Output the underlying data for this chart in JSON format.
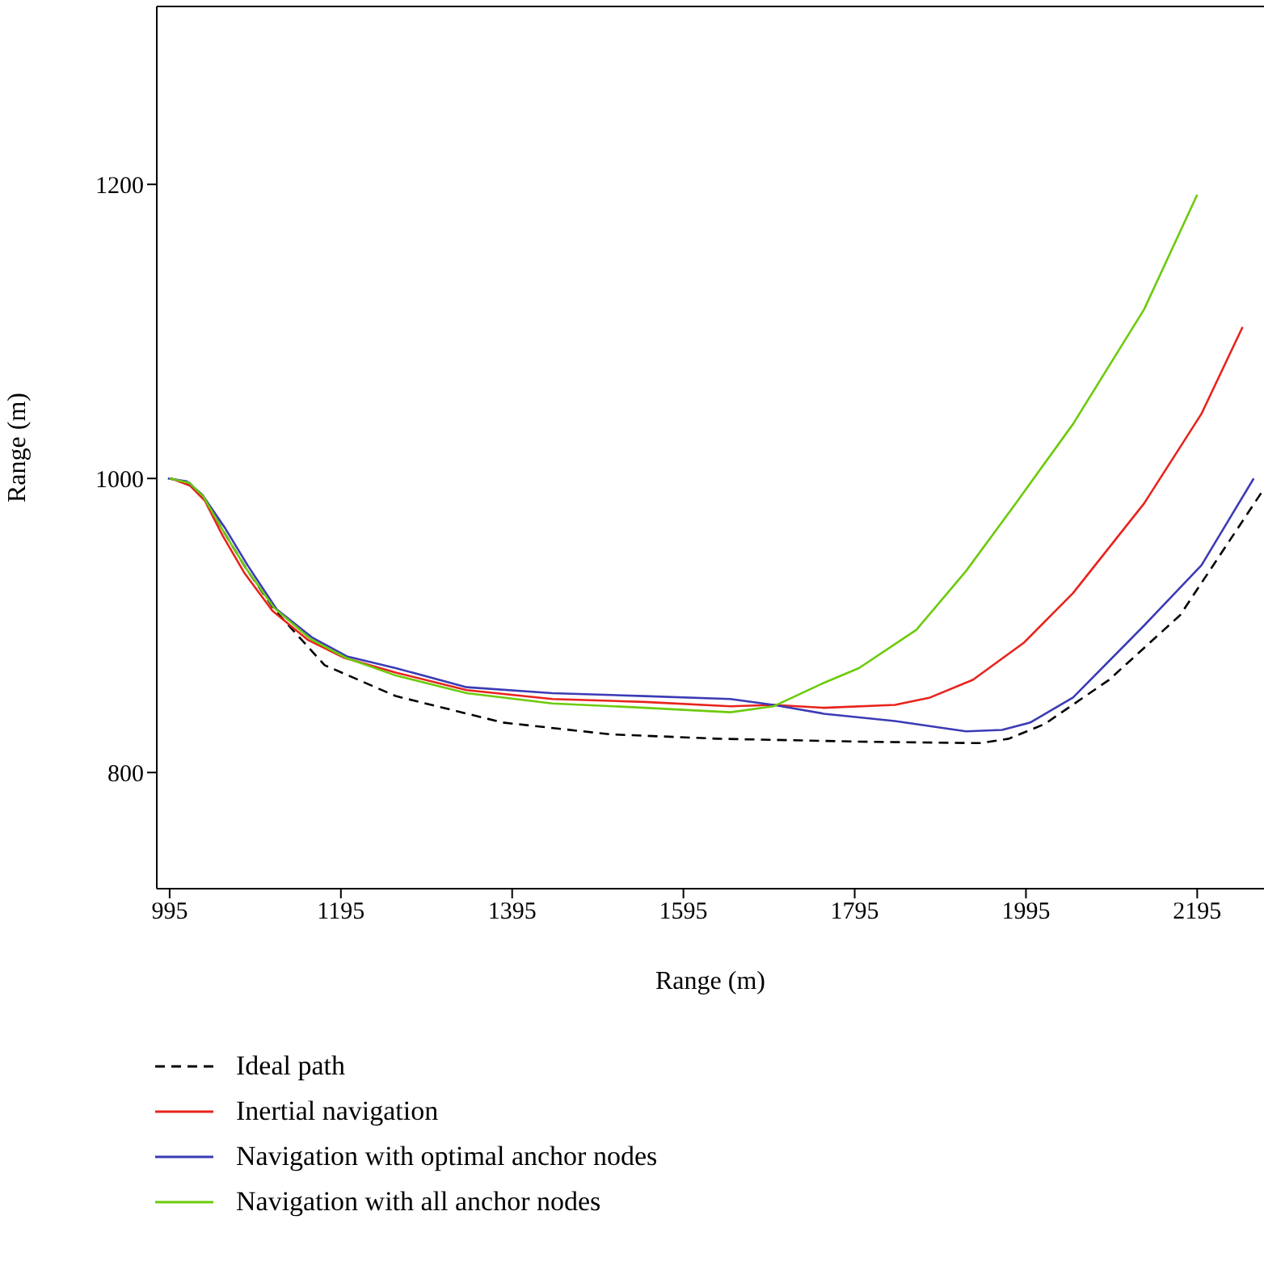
{
  "chart_data": {
    "type": "line",
    "xlabel": "Range (m)",
    "ylabel": "Range (m)",
    "xlim": [
      980,
      2273
    ],
    "ylim": [
      721,
      1321
    ],
    "xticks": [
      995,
      1195,
      1395,
      1595,
      1795,
      1995,
      2195
    ],
    "yticks": [
      800,
      1000,
      1200
    ],
    "grid": false,
    "legend": "bottom",
    "marker": "none",
    "series": [
      {
        "name": "Ideal path",
        "color": "#000000",
        "line_style": "dashed",
        "x": [
          995,
          1018,
          1034,
          1059,
          1084,
          1117,
          1176,
          1259,
          1384,
          1509,
          1634,
          1800,
          1942,
          1975,
          2017,
          2092,
          2175,
          2273
        ],
        "values": [
          1000,
          997,
          988,
          963,
          939,
          911,
          873,
          852,
          834,
          826,
          823,
          821,
          820,
          823,
          833,
          863,
          907,
          993
        ]
      },
      {
        "name": "Inertial navigation",
        "color": "#e8231c",
        "line_style": "solid",
        "x": [
          997,
          1019,
          1036,
          1057,
          1082,
          1115,
          1157,
          1199,
          1259,
          1342,
          1442,
          1550,
          1650,
          1700,
          1759,
          1842,
          1883,
          1933,
          1992,
          2050,
          2133,
          2200,
          2248
        ],
        "values": [
          1000,
          995,
          985,
          961,
          936,
          910,
          890,
          878,
          868,
          856,
          850,
          848,
          845,
          846,
          844,
          846,
          851,
          863,
          888,
          922,
          983,
          1044,
          1103
        ]
      },
      {
        "name": "Navigation with optimal anchor nodes",
        "color": "#3b3bb5",
        "line_style": "solid",
        "x": [
          993,
          1015,
          1033,
          1060,
          1086,
          1120,
          1161,
          1202,
          1259,
          1342,
          1442,
          1550,
          1650,
          1700,
          1759,
          1842,
          1925,
          1967,
          2000,
          2050,
          2133,
          2200,
          2261
        ],
        "values": [
          1000,
          998,
          989,
          966,
          941,
          911,
          892,
          879,
          871,
          858,
          854,
          852,
          850,
          846,
          840,
          835,
          828,
          829,
          834,
          851,
          900,
          941,
          1000
        ]
      },
      {
        "name": "Navigation with all anchor nodes",
        "color": "#6ccb0c",
        "line_style": "solid",
        "x": [
          995,
          1018,
          1034,
          1059,
          1084,
          1117,
          1159,
          1201,
          1259,
          1342,
          1442,
          1550,
          1650,
          1700,
          1759,
          1800,
          1867,
          1925,
          1983,
          2050,
          2133,
          2195
        ],
        "values": [
          1000,
          997,
          988,
          963,
          939,
          912,
          891,
          878,
          866,
          854,
          847,
          844,
          841,
          845,
          861,
          871,
          897,
          937,
          983,
          1037,
          1115,
          1193
        ]
      }
    ]
  }
}
